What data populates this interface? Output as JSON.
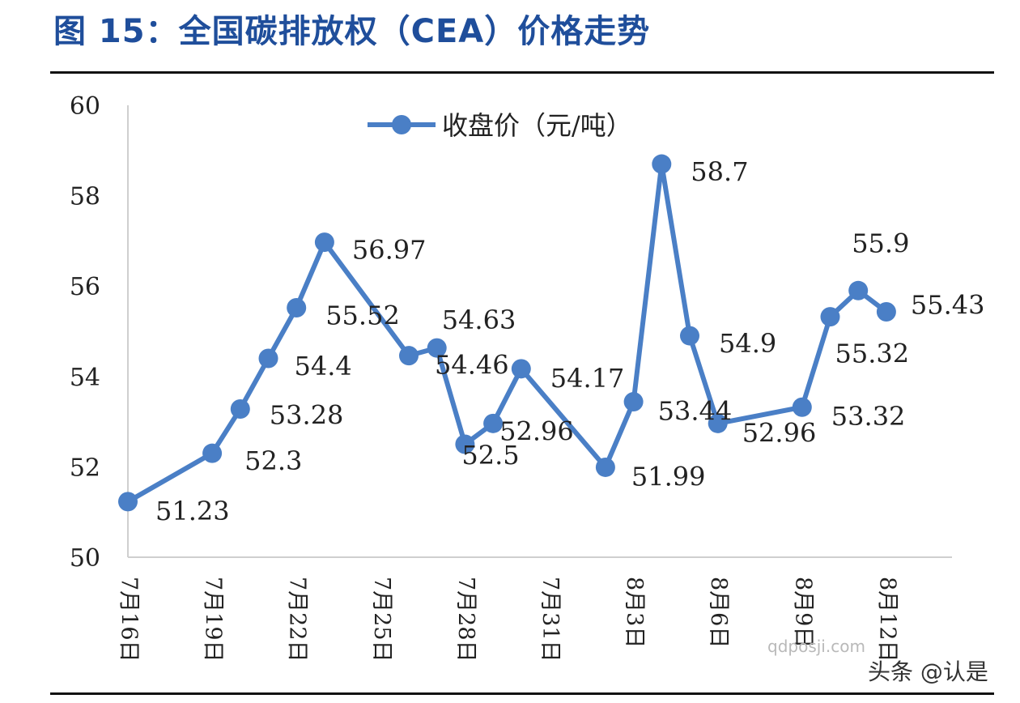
{
  "figure": {
    "title": "图 15：全国碳排放权（CEA）价格走势"
  },
  "watermarks": [
    "qdposji.com",
    "头条 @认是"
  ],
  "chart_data": {
    "type": "line",
    "title": "",
    "xlabel": "",
    "ylabel": "",
    "ylim": [
      50,
      60
    ],
    "yticks": [
      "50",
      "52",
      "54",
      "56",
      "58",
      "60"
    ],
    "x_tick_labels": [
      "7月16日",
      "7月19日",
      "7月22日",
      "7月25日",
      "7月28日",
      "7月31日",
      "8月3日",
      "8月6日",
      "8月9日",
      "8月12日"
    ],
    "x_tick_index": [
      0,
      3,
      6,
      9,
      12,
      15,
      18,
      21,
      24,
      27
    ],
    "legend": {
      "position": "top-center"
    },
    "grid": false,
    "series": [
      {
        "name": "收盘价（元/吨）",
        "color": "#4a7fc6",
        "points": [
          {
            "x": 0,
            "y": 51.23,
            "label": "51.23"
          },
          {
            "x": 3,
            "y": 52.3,
            "label": "52.3"
          },
          {
            "x": 4,
            "y": 53.28,
            "label": "53.28"
          },
          {
            "x": 5,
            "y": 54.4,
            "label": "54.4"
          },
          {
            "x": 6,
            "y": 55.52,
            "label": "55.52"
          },
          {
            "x": 7,
            "y": 56.97,
            "label": "56.97"
          },
          {
            "x": 10,
            "y": 54.46,
            "label": "54.46"
          },
          {
            "x": 11,
            "y": 54.63,
            "label": "54.63"
          },
          {
            "x": 12,
            "y": 52.5,
            "label": "52.5"
          },
          {
            "x": 13,
            "y": 52.96,
            "label": "52.96"
          },
          {
            "x": 14,
            "y": 54.17,
            "label": "54.17"
          },
          {
            "x": 17,
            "y": 51.99,
            "label": "51.99"
          },
          {
            "x": 18,
            "y": 53.44,
            "label": "53.44"
          },
          {
            "x": 19,
            "y": 58.7,
            "label": "58.7"
          },
          {
            "x": 20,
            "y": 54.9,
            "label": "54.9"
          },
          {
            "x": 21,
            "y": 52.96,
            "label": "52.96"
          },
          {
            "x": 24,
            "y": 53.32,
            "label": "53.32"
          },
          {
            "x": 25,
            "y": 55.32,
            "label": "55.32"
          },
          {
            "x": 26,
            "y": 55.9,
            "label": "55.9"
          },
          {
            "x": 27,
            "y": 55.43,
            "label": "55.43"
          }
        ]
      }
    ]
  }
}
